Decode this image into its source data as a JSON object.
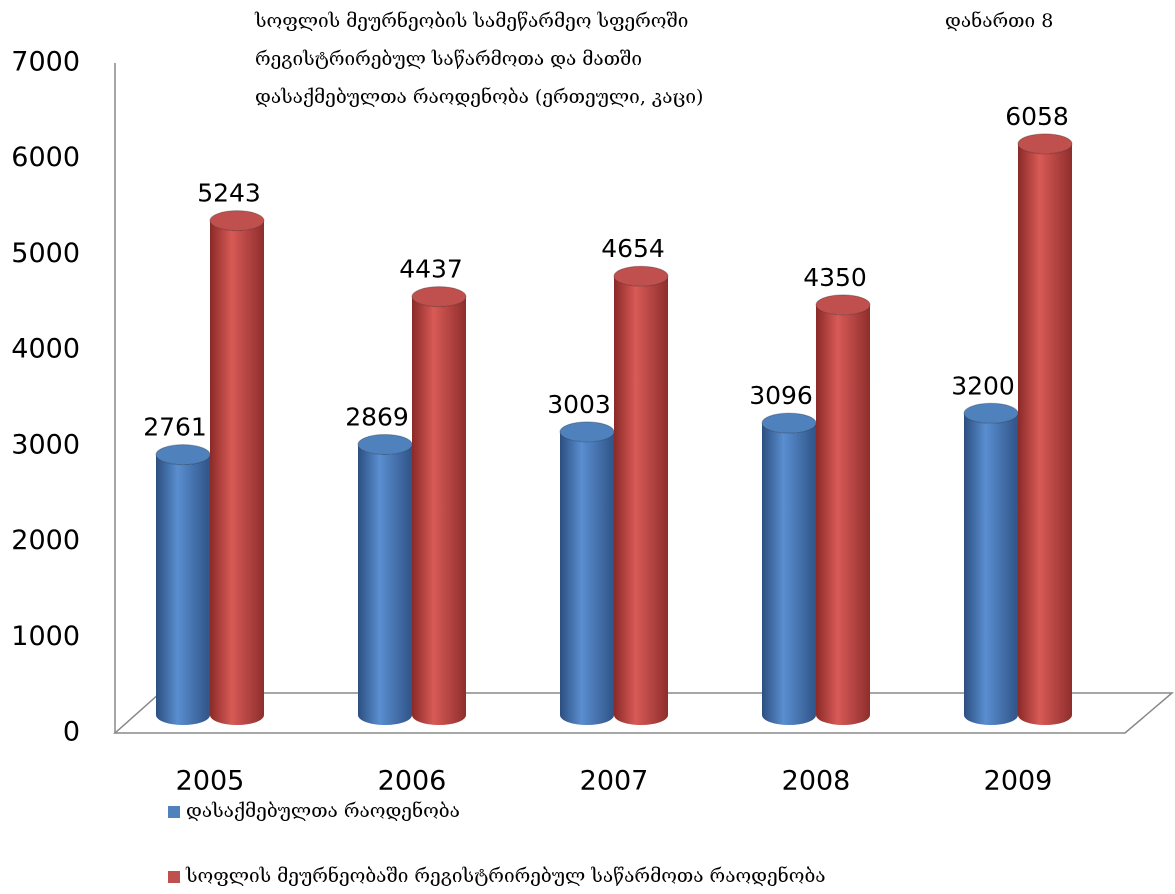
{
  "chart_data": {
    "type": "bar",
    "title_lines": [
      "სოფლის მეურნეობის სამეწარმეო სფეროში",
      "რეგისტრირებულ საწარმოთა  და მათში",
      "დასაქმებულთა რაოდენობა (ერთეული, კაცი)"
    ],
    "annotation": "დანართი 8",
    "categories": [
      "2005",
      "2006",
      "2007",
      "2008",
      "2009"
    ],
    "series": [
      {
        "name": "დასაქმებულთა რაოდენობა",
        "color": "#4f81bd",
        "values": [
          2761,
          2869,
          3003,
          3096,
          3200
        ]
      },
      {
        "name": "სოფლის მეურნეობაში რეგისტრირებულ საწარმოთა რაოდენობა",
        "color": "#c0504d",
        "values": [
          5243,
          4437,
          4654,
          4350,
          6058
        ]
      }
    ],
    "ylim": [
      0,
      7000
    ],
    "yticks": [
      0,
      1000,
      2000,
      3000,
      4000,
      5000,
      6000,
      7000
    ]
  }
}
